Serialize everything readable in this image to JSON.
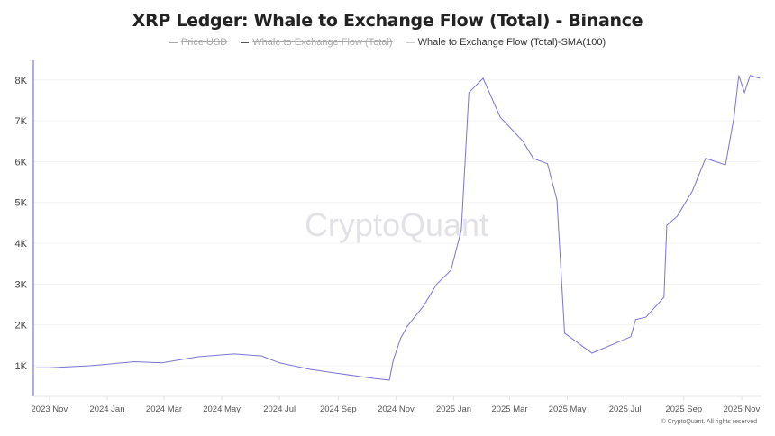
{
  "chart_data": {
    "type": "line",
    "title": "XRP Ledger: Whale to Exchange Flow (Total) - Binance",
    "legend": [
      {
        "name": "Price USD",
        "color": "#aaaaaa",
        "hidden": true
      },
      {
        "name": "Whale to Exchange Flow (Total)",
        "color": "#555555",
        "hidden": true
      },
      {
        "name": "Whale to Exchange Flow (Total)-SMA(100)",
        "color": "#7b74d6",
        "hidden": false
      }
    ],
    "legend_position": "top",
    "xlim": [
      "2023-10-15",
      "2025-11-22"
    ],
    "ylim": [
      250,
      8480
    ],
    "grid": true,
    "x_ticks": [
      {
        "date": "2023-11-01",
        "label": "2023 Nov"
      },
      {
        "date": "2024-01-01",
        "label": "2024 Jan"
      },
      {
        "date": "2024-03-01",
        "label": "2024 Mar"
      },
      {
        "date": "2024-05-01",
        "label": "2024 May"
      },
      {
        "date": "2024-07-01",
        "label": "2024 Jul"
      },
      {
        "date": "2024-09-01",
        "label": "2024 Sep"
      },
      {
        "date": "2024-11-01",
        "label": "2024 Nov"
      },
      {
        "date": "2025-01-01",
        "label": "2025 Jan"
      },
      {
        "date": "2025-03-01",
        "label": "2025 Mar"
      },
      {
        "date": "2025-05-01",
        "label": "2025 May"
      },
      {
        "date": "2025-07-01",
        "label": "2025 Jul"
      },
      {
        "date": "2025-09-01",
        "label": "2025 Sep"
      },
      {
        "date": "2025-11-01",
        "label": "2025 Nov"
      }
    ],
    "y_ticks": [
      {
        "value": 1000,
        "label": "1K"
      },
      {
        "value": 2000,
        "label": "2K"
      },
      {
        "value": 3000,
        "label": "3K"
      },
      {
        "value": 4000,
        "label": "4K"
      },
      {
        "value": 5000,
        "label": "5K"
      },
      {
        "value": 6000,
        "label": "6K"
      },
      {
        "value": 7000,
        "label": "7K"
      },
      {
        "value": 8000,
        "label": "8K"
      }
    ],
    "series": [
      {
        "name": "Whale to Exchange Flow (Total)-SMA(100)",
        "color": "#7b74d6",
        "points": [
          [
            "2023-10-18",
            950
          ],
          [
            "2023-11-01",
            950
          ],
          [
            "2023-12-14",
            1000
          ],
          [
            "2024-01-30",
            1100
          ],
          [
            "2024-02-28",
            1070
          ],
          [
            "2024-04-06",
            1220
          ],
          [
            "2024-05-14",
            1290
          ],
          [
            "2024-06-12",
            1240
          ],
          [
            "2024-07-01",
            1070
          ],
          [
            "2024-08-03",
            910
          ],
          [
            "2024-09-05",
            800
          ],
          [
            "2024-10-09",
            690
          ],
          [
            "2024-10-25",
            650
          ],
          [
            "2024-10-29",
            1130
          ],
          [
            "2024-11-06",
            1680
          ],
          [
            "2024-11-13",
            1970
          ],
          [
            "2024-11-30",
            2460
          ],
          [
            "2024-12-14",
            3000
          ],
          [
            "2024-12-29",
            3340
          ],
          [
            "2025-01-09",
            4330
          ],
          [
            "2025-01-17",
            7690
          ],
          [
            "2025-02-01",
            8040
          ],
          [
            "2025-02-19",
            7090
          ],
          [
            "2025-03-15",
            6500
          ],
          [
            "2025-03-26",
            6080
          ],
          [
            "2025-04-10",
            5950
          ],
          [
            "2025-04-20",
            5060
          ],
          [
            "2025-04-28",
            1800
          ],
          [
            "2025-05-27",
            1310
          ],
          [
            "2025-07-07",
            1710
          ],
          [
            "2025-07-12",
            2130
          ],
          [
            "2025-07-23",
            2190
          ],
          [
            "2025-08-11",
            2680
          ],
          [
            "2025-08-14",
            4440
          ],
          [
            "2025-08-25",
            4660
          ],
          [
            "2025-09-10",
            5280
          ],
          [
            "2025-09-24",
            6080
          ],
          [
            "2025-10-15",
            5920
          ],
          [
            "2025-10-24",
            7090
          ],
          [
            "2025-10-29",
            8110
          ],
          [
            "2025-11-04",
            7690
          ],
          [
            "2025-11-10",
            8110
          ],
          [
            "2025-11-20",
            8040
          ]
        ]
      }
    ]
  },
  "watermark": "CryptoQuant",
  "copyright": "© CryptoQuant. All rights reserved"
}
